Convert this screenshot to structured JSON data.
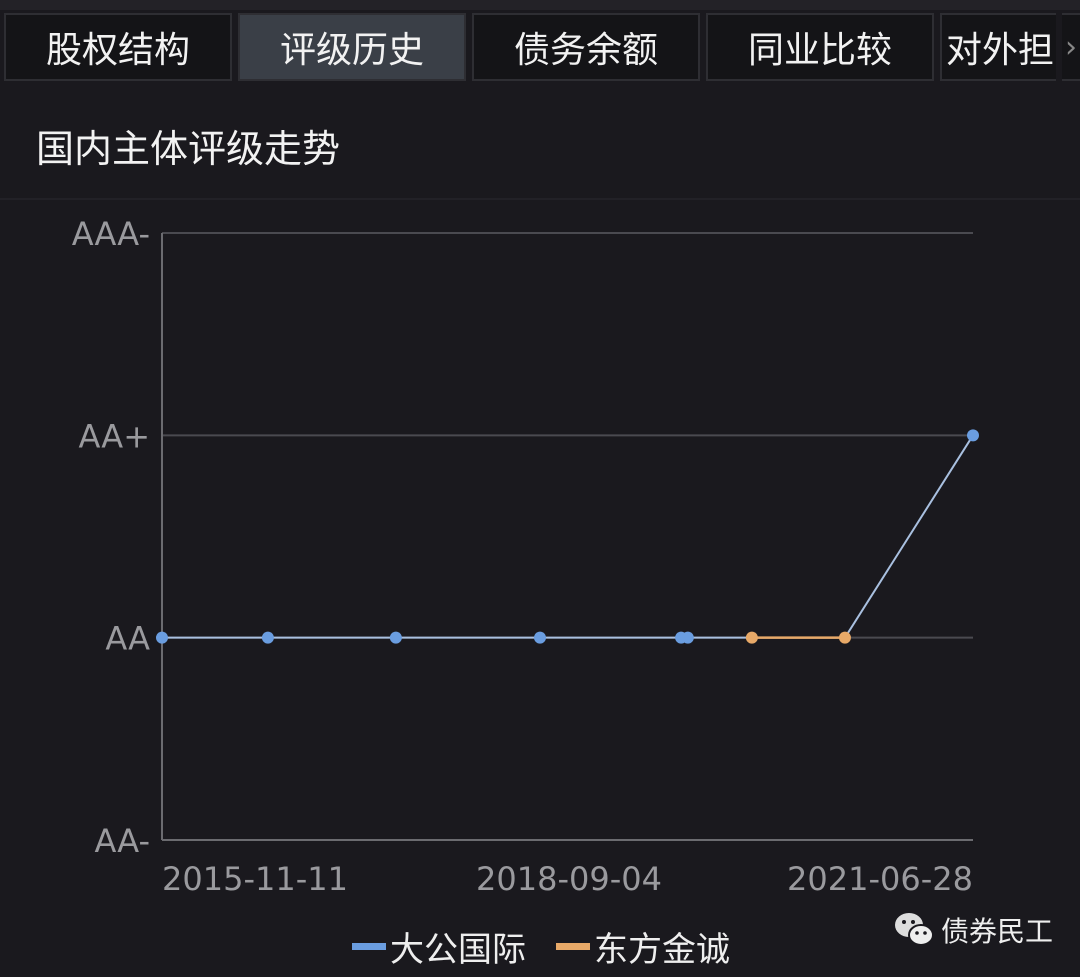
{
  "tabs": [
    {
      "label": "股权结构",
      "active": false
    },
    {
      "label": "评级历史",
      "active": true
    },
    {
      "label": "债务余额",
      "active": false
    },
    {
      "label": "同业比较",
      "active": false
    },
    {
      "label": "对外担",
      "active": false
    }
  ],
  "more_icon": "chevron-right-icon",
  "section_title": "国内主体评级走势",
  "chart_data": {
    "type": "line",
    "title": "国内主体评级走势",
    "y_categories": [
      "AA-",
      "AA",
      "AA+",
      "AAA-"
    ],
    "x_tick_labels": [
      "2015-11-11",
      "2018-09-04",
      "2021-06-28"
    ],
    "grid": true,
    "legend_position": "bottom",
    "series": [
      {
        "name": "大公国际",
        "color": "#6a9de0",
        "points": [
          {
            "date": "2015-11-11",
            "rating": "AA"
          },
          {
            "date": "2016-08-25",
            "rating": "AA"
          },
          {
            "date": "2017-08-08",
            "rating": "AA"
          },
          {
            "date": "2018-09-04",
            "rating": "AA"
          },
          {
            "date": "2019-08-05",
            "rating": "AA"
          },
          {
            "date": "2019-08-21",
            "rating": "AA"
          },
          {
            "date": "2021-06-28",
            "rating": "AA+"
          }
        ]
      },
      {
        "name": "东方金诚",
        "color": "#e8a968",
        "points": [
          {
            "date": "2020-01-20",
            "rating": "AA"
          },
          {
            "date": "2020-08-28",
            "rating": "AA"
          }
        ]
      }
    ]
  },
  "watermark": {
    "text": "债券民工",
    "icon": "wechat-icon"
  }
}
